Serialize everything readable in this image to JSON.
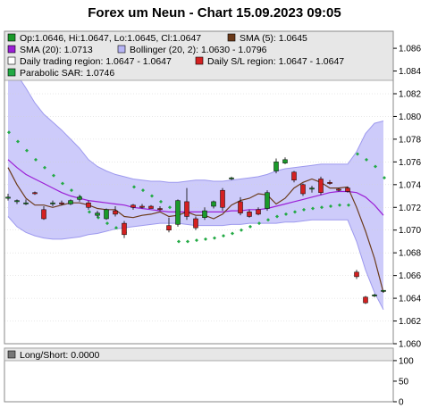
{
  "chart_data": {
    "type": "candlestick",
    "title": "Forex um Neun - Chart 15.09.2023 09:05",
    "legend": {
      "ohlc": "Op:1.0646, Hi:1.0647, Lo:1.0645, Cl:1.0647",
      "sma5": "SMA (5): 1.0645",
      "sma20": "SMA (20): 1.0713",
      "bollinger": "Bollinger (20, 2): 1.0630 - 1.0796",
      "trading_region": "Daily trading region: 1.0647 - 1.0647",
      "sl_region": "Daily S/L region: 1.0647 - 1.0647",
      "sar": "Parabolic SAR: 1.0746"
    },
    "y_ticks": [
      "1.086",
      "1.084",
      "1.082",
      "1.080",
      "1.078",
      "1.076",
      "1.074",
      "1.072",
      "1.070",
      "1.068",
      "1.066",
      "1.064",
      "1.062",
      "1.060"
    ],
    "ylim": [
      1.06,
      1.0875
    ],
    "lower_panel": {
      "legend": "Long/Short: 0.0000",
      "y_ticks": [
        "100",
        "50",
        "0"
      ],
      "ylim": [
        0,
        115
      ]
    },
    "candles": [
      {
        "o": 1.0728,
        "h": 1.0732,
        "l": 1.0726,
        "c": 1.0729
      },
      {
        "o": 1.0725,
        "h": 1.0727,
        "l": 1.0723,
        "c": 1.0726
      },
      {
        "o": 1.0723,
        "h": 1.0727,
        "l": 1.0722,
        "c": 1.0724
      },
      {
        "o": 1.0733,
        "h": 1.0734,
        "l": 1.0731,
        "c": 1.0732
      },
      {
        "o": 1.0718,
        "h": 1.0721,
        "l": 1.0709,
        "c": 1.071
      },
      {
        "o": 1.0723,
        "h": 1.0726,
        "l": 1.0721,
        "c": 1.0724
      },
      {
        "o": 1.0724,
        "h": 1.0726,
        "l": 1.0722,
        "c": 1.0723
      },
      {
        "o": 1.0723,
        "h": 1.0727,
        "l": 1.0722,
        "c": 1.0726
      },
      {
        "o": 1.0727,
        "h": 1.0731,
        "l": 1.0725,
        "c": 1.0729
      },
      {
        "o": 1.0724,
        "h": 1.0726,
        "l": 1.0718,
        "c": 1.072
      },
      {
        "o": 1.0713,
        "h": 1.0717,
        "l": 1.0711,
        "c": 1.0715
      },
      {
        "o": 1.071,
        "h": 1.0719,
        "l": 1.0709,
        "c": 1.0718
      },
      {
        "o": 1.0717,
        "h": 1.0721,
        "l": 1.0712,
        "c": 1.0714
      },
      {
        "o": 1.0706,
        "h": 1.0708,
        "l": 1.0693,
        "c": 1.0696
      },
      {
        "o": 1.0722,
        "h": 1.0723,
        "l": 1.0718,
        "c": 1.072
      },
      {
        "o": 1.0721,
        "h": 1.0723,
        "l": 1.0719,
        "c": 1.072
      },
      {
        "o": 1.0721,
        "h": 1.0722,
        "l": 1.0719,
        "c": 1.0719
      },
      {
        "o": 1.0719,
        "h": 1.0721,
        "l": 1.0717,
        "c": 1.0718
      },
      {
        "o": 1.0704,
        "h": 1.0711,
        "l": 1.0698,
        "c": 1.07
      },
      {
        "o": 1.0705,
        "h": 1.0727,
        "l": 1.0703,
        "c": 1.0726
      },
      {
        "o": 1.0725,
        "h": 1.0737,
        "l": 1.0709,
        "c": 1.0712
      },
      {
        "o": 1.071,
        "h": 1.0712,
        "l": 1.07,
        "c": 1.0702
      },
      {
        "o": 1.0711,
        "h": 1.072,
        "l": 1.0709,
        "c": 1.0717
      },
      {
        "o": 1.0721,
        "h": 1.0726,
        "l": 1.0719,
        "c": 1.0725
      },
      {
        "o": 1.0735,
        "h": 1.0737,
        "l": 1.0717,
        "c": 1.072
      },
      {
        "o": 1.0745,
        "h": 1.0747,
        "l": 1.0744,
        "c": 1.0746
      },
      {
        "o": 1.0725,
        "h": 1.0729,
        "l": 1.0713,
        "c": 1.0715
      },
      {
        "o": 1.0716,
        "h": 1.0718,
        "l": 1.0711,
        "c": 1.0712
      },
      {
        "o": 1.0718,
        "h": 1.072,
        "l": 1.0713,
        "c": 1.0714
      },
      {
        "o": 1.0719,
        "h": 1.0735,
        "l": 1.0717,
        "c": 1.0733
      },
      {
        "o": 1.0752,
        "h": 1.0763,
        "l": 1.075,
        "c": 1.076
      },
      {
        "o": 1.0759,
        "h": 1.0764,
        "l": 1.0758,
        "c": 1.0762
      },
      {
        "o": 1.0751,
        "h": 1.0752,
        "l": 1.0742,
        "c": 1.0744
      },
      {
        "o": 1.074,
        "h": 1.0741,
        "l": 1.073,
        "c": 1.0732
      },
      {
        "o": 1.0736,
        "h": 1.0739,
        "l": 1.0733,
        "c": 1.0737
      },
      {
        "o": 1.0745,
        "h": 1.0747,
        "l": 1.0731,
        "c": 1.0733
      },
      {
        "o": 1.0742,
        "h": 1.0744,
        "l": 1.074,
        "c": 1.0741
      },
      {
        "o": 1.0736,
        "h": 1.0737,
        "l": 1.0734,
        "c": 1.0735
      },
      {
        "o": 1.0737,
        "h": 1.0738,
        "l": 1.0733,
        "c": 1.0734
      },
      {
        "o": 1.0663,
        "h": 1.0665,
        "l": 1.0657,
        "c": 1.0659
      },
      {
        "o": 1.0641,
        "h": 1.0642,
        "l": 1.0635,
        "c": 1.0636
      },
      {
        "o": 1.0642,
        "h": 1.0644,
        "l": 1.0641,
        "c": 1.0643
      },
      {
        "o": 1.0646,
        "h": 1.0647,
        "l": 1.0645,
        "c": 1.0647
      }
    ],
    "sar": [
      1.0786,
      1.0778,
      1.077,
      1.0762,
      1.0755,
      1.0748,
      1.0741,
      1.0735,
      1.0729,
      1.0716,
      1.0711,
      1.0706,
      1.0702,
      1.0698,
      1.0738,
      1.0735,
      1.073,
      1.0725,
      1.072,
      1.069,
      1.069,
      1.0691,
      1.0692,
      1.0693,
      1.0695,
      1.0697,
      1.07,
      1.0703,
      1.0706,
      1.0709,
      1.0712,
      1.0714,
      1.0716,
      1.0718,
      1.0719,
      1.072,
      1.0721,
      1.0722,
      1.0722,
      1.0767,
      1.0762,
      1.0756,
      1.0746
    ],
    "sma5": [
      1.0755,
      1.074,
      1.0728,
      1.0722,
      1.0722,
      1.072,
      1.0722,
      1.0724,
      1.0724,
      1.0722,
      1.0719,
      1.0718,
      1.0718,
      1.0712,
      1.0711,
      1.0713,
      1.0714,
      1.0716,
      1.0712,
      1.0713,
      1.0716,
      1.0713,
      1.0713,
      1.071,
      1.0714,
      1.0722,
      1.0726,
      1.0728,
      1.0732,
      1.0731,
      1.0723,
      1.0728,
      1.0737,
      1.0742,
      1.0745,
      1.0742,
      1.0737,
      1.0737,
      1.0738,
      1.072,
      1.0699,
      1.0675,
      1.0645
    ],
    "sma20": [
      1.0762,
      1.0755,
      1.0749,
      1.0745,
      1.0741,
      1.0737,
      1.0733,
      1.073,
      1.0728,
      1.0726,
      1.0725,
      1.0724,
      1.0723,
      1.0722,
      1.072,
      1.0719,
      1.0718,
      1.0717,
      1.0716,
      1.0716,
      1.0716,
      1.0716,
      1.0716,
      1.0716,
      1.0716,
      1.0717,
      1.0717,
      1.0718,
      1.0718,
      1.0719,
      1.0721,
      1.0723,
      1.0725,
      1.0727,
      1.0729,
      1.0731,
      1.0733,
      1.0734,
      1.0734,
      1.0733,
      1.0729,
      1.0722,
      1.0713
    ],
    "bb_upper": [
      1.0845,
      1.0837,
      1.0825,
      1.0812,
      1.0802,
      1.0795,
      1.0788,
      1.078,
      1.0772,
      1.0762,
      1.0756,
      1.0752,
      1.0749,
      1.0747,
      1.0745,
      1.0744,
      1.0743,
      1.0743,
      1.0742,
      1.0742,
      1.0743,
      1.0744,
      1.0744,
      1.0743,
      1.0743,
      1.0744,
      1.0745,
      1.0746,
      1.0747,
      1.0749,
      1.0752,
      1.0754,
      1.0755,
      1.0756,
      1.0757,
      1.0758,
      1.0758,
      1.0758,
      1.0758,
      1.0769,
      1.0785,
      1.0794,
      1.0796
    ],
    "bb_lower": [
      1.0712,
      1.0703,
      1.0698,
      1.0695,
      1.0693,
      1.0692,
      1.0692,
      1.0693,
      1.0694,
      1.0696,
      1.0697,
      1.0699,
      1.0701,
      1.0702,
      1.0703,
      1.0704,
      1.0705,
      1.0706,
      1.0706,
      1.0706,
      1.0705,
      1.0704,
      1.0704,
      1.0704,
      1.0704,
      1.0705,
      1.0705,
      1.0706,
      1.0706,
      1.0706,
      1.0706,
      1.0707,
      1.0707,
      1.0708,
      1.0709,
      1.0709,
      1.0709,
      1.0709,
      1.0709,
      1.069,
      1.0665,
      1.0645,
      1.063
    ],
    "colors": {
      "bull": "#1a9a2a",
      "bear": "#d42020",
      "sar": "#22aa44",
      "sma5": "#6b3a1a",
      "sma20": "#9b1fd6",
      "band_fill": "#cdcbfa",
      "band_stroke": "#9d99ee",
      "plot_bg": "#ffffff",
      "panel_bg": "#e7e7e7"
    }
  }
}
